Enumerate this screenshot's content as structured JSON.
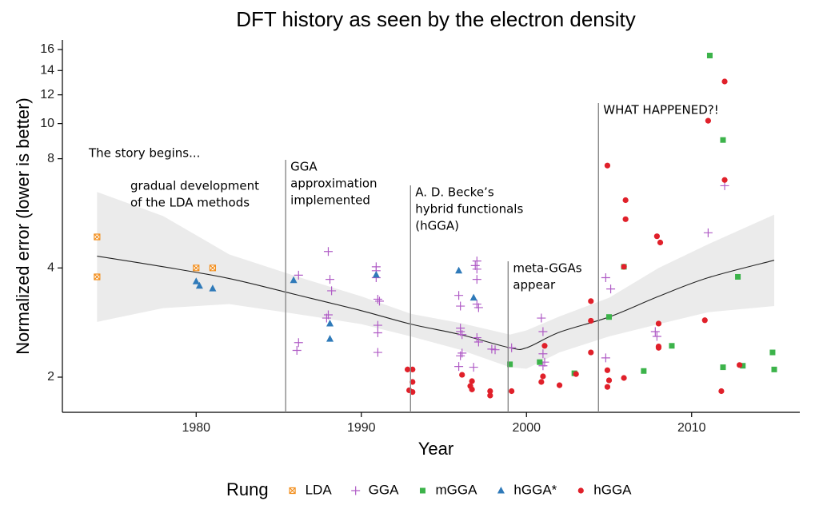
{
  "chart_data": {
    "type": "scatter",
    "title": "DFT history as seen by the electron density",
    "x_label": "Year",
    "y_label": "Normalized error (lower is better)",
    "xlim": [
      1971.9,
      2016.55
    ],
    "xticks": [
      1980,
      1990,
      2000,
      2010
    ],
    "ylim": [
      1.6,
      17
    ],
    "yticks": [
      2,
      4,
      8,
      10,
      12,
      14,
      16
    ],
    "y_log": true,
    "legend_title": "Rung",
    "legend_position": "bottom",
    "series": [
      {
        "name": "LDA",
        "color": "#f28e1c",
        "marker": "square-cross",
        "x": [
          1974,
          1974,
          1980,
          1981
        ],
        "values": [
          4.87,
          3.78,
          4.0,
          4.0
        ]
      },
      {
        "name": "GGA",
        "color": "#b05cc6",
        "marker": "plus",
        "x": [
          1986.2,
          1986.2,
          1986.1,
          1988.0,
          1988.1,
          1988.2,
          1987.9,
          1988.0,
          1990.9,
          1990.9,
          1990.9,
          1991.0,
          1991.1,
          1991.0,
          1991.0,
          1991.0,
          1995.9,
          1996.0,
          1996.0,
          1996.0,
          1996.1,
          1996.1,
          1996.0,
          1995.9,
          1997.0,
          1996.9,
          1997.0,
          1997.0,
          1997.0,
          1997.1,
          1997.0,
          1997.1,
          1996.8,
          1997.9,
          1998.1,
          1999.1,
          2000.9,
          2001.0,
          2001.0,
          2001.1,
          2001.0,
          2004.8,
          2005.1,
          2004.8,
          2007.8,
          2007.9,
          2011.0,
          2012.0
        ],
        "values": [
          3.82,
          2.49,
          2.37,
          4.44,
          3.72,
          3.46,
          2.91,
          2.97,
          4.03,
          3.93,
          3.76,
          3.28,
          3.24,
          2.78,
          2.65,
          2.34,
          3.36,
          3.14,
          2.73,
          2.67,
          2.62,
          2.33,
          2.29,
          2.14,
          4.18,
          4.06,
          3.97,
          3.72,
          3.18,
          3.11,
          2.57,
          2.5,
          2.13,
          2.39,
          2.38,
          2.41,
          2.91,
          2.67,
          2.32,
          2.2,
          2.15,
          3.76,
          3.5,
          2.26,
          2.67,
          2.59,
          5.0,
          6.74
        ]
      },
      {
        "name": "mGGA",
        "color": "#3cb34a",
        "marker": "square",
        "x": [
          1999.0,
          2000.8,
          2002.9,
          2005.0,
          2005.9,
          2007.1,
          2008.8,
          2011.1,
          2011.9,
          2011.9,
          2012.8,
          2013.1,
          2014.9,
          2015.0
        ],
        "values": [
          2.17,
          2.2,
          2.05,
          2.93,
          4.03,
          2.08,
          2.44,
          15.4,
          9.01,
          2.13,
          3.78,
          2.15,
          2.34,
          2.1
        ]
      },
      {
        "name": "hGGA*",
        "color": "#2f7ab9",
        "marker": "triangle",
        "x": [
          1980,
          1980.2,
          1981,
          1985.9,
          1988.1,
          1988.1,
          1990.9,
          1995.9,
          1996.8
        ],
        "values": [
          3.67,
          3.57,
          3.51,
          3.7,
          2.81,
          2.55,
          3.83,
          3.93,
          3.31
        ]
      },
      {
        "name": "hGGA",
        "color": "#e0202a",
        "marker": "circle",
        "x": [
          1992.8,
          1993.1,
          1993.1,
          1992.9,
          1993.1,
          1996.1,
          1996.7,
          1996.6,
          1996.7,
          1997.8,
          1997.8,
          1999.1,
          2001.1,
          2001.0,
          2000.9,
          2002.0,
          2003.0,
          2003.9,
          2003.9,
          2003.9,
          2004.9,
          2004.9,
          2004.9,
          2005.0,
          2005.9,
          2006.0,
          2006.0,
          2005.9,
          2007.9,
          2008.1,
          2008.0,
          2008.0,
          2008.0,
          2010.8,
          2011.0,
          2012.0,
          2012.0,
          2011.8,
          2012.9
        ],
        "values": [
          2.1,
          2.1,
          1.94,
          1.84,
          1.82,
          2.03,
          1.95,
          1.89,
          1.85,
          1.83,
          1.78,
          1.83,
          2.44,
          2.01,
          1.94,
          1.9,
          2.04,
          3.24,
          2.86,
          2.34,
          7.66,
          2.09,
          1.88,
          1.96,
          1.99,
          6.15,
          5.45,
          4.03,
          4.89,
          4.7,
          2.81,
          2.41,
          2.43,
          2.87,
          10.18,
          13.06,
          6.99,
          1.83,
          2.16
        ]
      }
    ],
    "trend": {
      "color": "#222222",
      "band_color": "#ebebeb",
      "x": [
        1974,
        1978,
        1982,
        1986,
        1990,
        1993,
        1996,
        1999,
        2000,
        2002,
        2005,
        2008,
        2011,
        2015
      ],
      "values": [
        4.31,
        4.03,
        3.74,
        3.38,
        3.05,
        2.8,
        2.62,
        2.41,
        2.41,
        2.66,
        2.93,
        3.34,
        3.76,
        4.2
      ],
      "lower": [
        2.84,
        3.1,
        3.18,
        2.99,
        2.8,
        2.59,
        2.38,
        2.13,
        2.11,
        2.34,
        2.59,
        2.8,
        3.02,
        3.14
      ],
      "upper": [
        6.48,
        5.56,
        4.36,
        3.8,
        3.34,
        2.99,
        2.82,
        2.62,
        2.69,
        2.94,
        3.31,
        4.0,
        4.65,
        5.61
      ]
    },
    "annotations": [
      {
        "lines": [
          "The story begins..."
        ]
      },
      {
        "lines": [
          "gradual development",
          "of the LDA methods"
        ]
      },
      {
        "lines": [
          "GGA",
          "approximation",
          "implemented"
        ],
        "x": 1985.42
      },
      {
        "lines": [
          "A. D. Becke’s",
          "hybrid functionals",
          "(hGGA)"
        ],
        "x": 1992.98
      },
      {
        "lines": [
          "meta-GGAs",
          "appear"
        ],
        "x": 1998.89
      },
      {
        "lines": [
          "WHAT HAPPENED?!"
        ],
        "x": 2004.36
      }
    ]
  }
}
